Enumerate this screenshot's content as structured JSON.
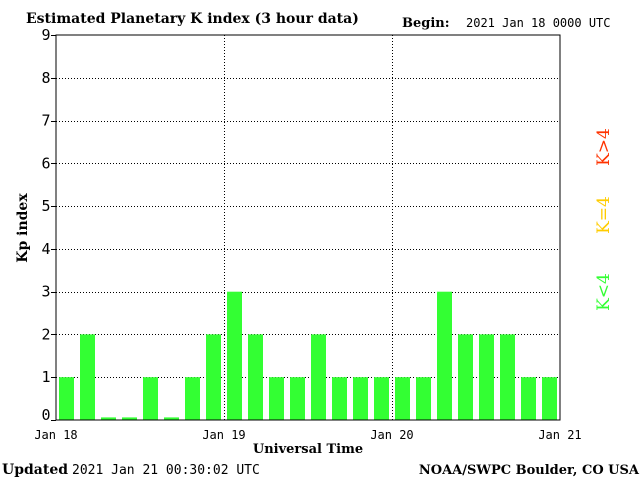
{
  "header": {
    "title": "Estimated Planetary K index (3 hour data)",
    "begin_label": "Begin:",
    "begin_value": "2021 Jan 18 0000 UTC"
  },
  "footer": {
    "updated_label": "Updated",
    "updated_value": "2021 Jan 21 00:30:02 UTC",
    "credit": "NOAA/SWPC Boulder, CO USA"
  },
  "legend": {
    "items": [
      {
        "label": "K>4",
        "color": "#ff3300"
      },
      {
        "label": "K=4",
        "color": "#ffcc00"
      },
      {
        "label": "K<4",
        "color": "#33ff33"
      }
    ]
  },
  "colors": {
    "bar_low": "#33ff33",
    "bar_mid": "#ffcc00",
    "bar_high": "#ff3300",
    "axis": "#000000",
    "grid": "#000000"
  },
  "chart_data": {
    "type": "bar",
    "title": "Estimated Planetary K index (3 hour data)",
    "xlabel": "Universal Time",
    "ylabel": "Kp index",
    "ylim": [
      0,
      9
    ],
    "yticks": [
      0,
      1,
      2,
      3,
      4,
      5,
      6,
      7,
      8,
      9
    ],
    "xticks": [
      "Jan 18",
      "Jan 19",
      "Jan 20",
      "Jan 21"
    ],
    "bars_per_day": 8,
    "grid": true,
    "values": [
      1,
      2,
      0,
      0,
      1,
      0,
      1,
      2,
      3,
      2,
      1,
      1,
      2,
      1,
      1,
      1,
      1,
      1,
      3,
      2,
      2,
      2,
      1,
      1
    ]
  }
}
